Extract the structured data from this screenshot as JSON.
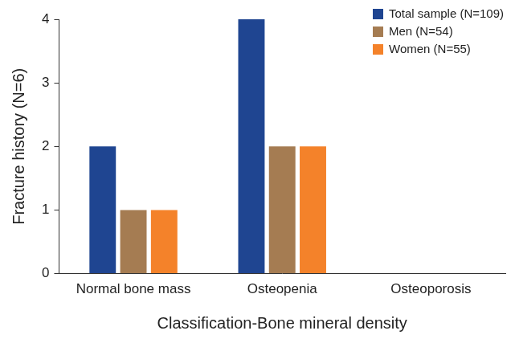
{
  "chart_data": {
    "type": "bar",
    "categories": [
      "Normal bone mass",
      "Osteopenia",
      "Osteoporosis"
    ],
    "series": [
      {
        "name": "Total sample (N=109)",
        "color": "#1f4591",
        "values": [
          2,
          4,
          0
        ]
      },
      {
        "name": "Men (N=54)",
        "color": "#a57c52",
        "values": [
          1,
          2,
          0
        ]
      },
      {
        "name": "Women (N=55)",
        "color": "#f4822a",
        "values": [
          1,
          2,
          0
        ]
      }
    ],
    "x_label": "Classification-Bone mineral density",
    "y_label": "Fracture history (N=6)",
    "ylim": [
      0,
      4
    ],
    "yticks": [
      0,
      1,
      2,
      3,
      4
    ],
    "grid": false,
    "legend": "upper right"
  }
}
